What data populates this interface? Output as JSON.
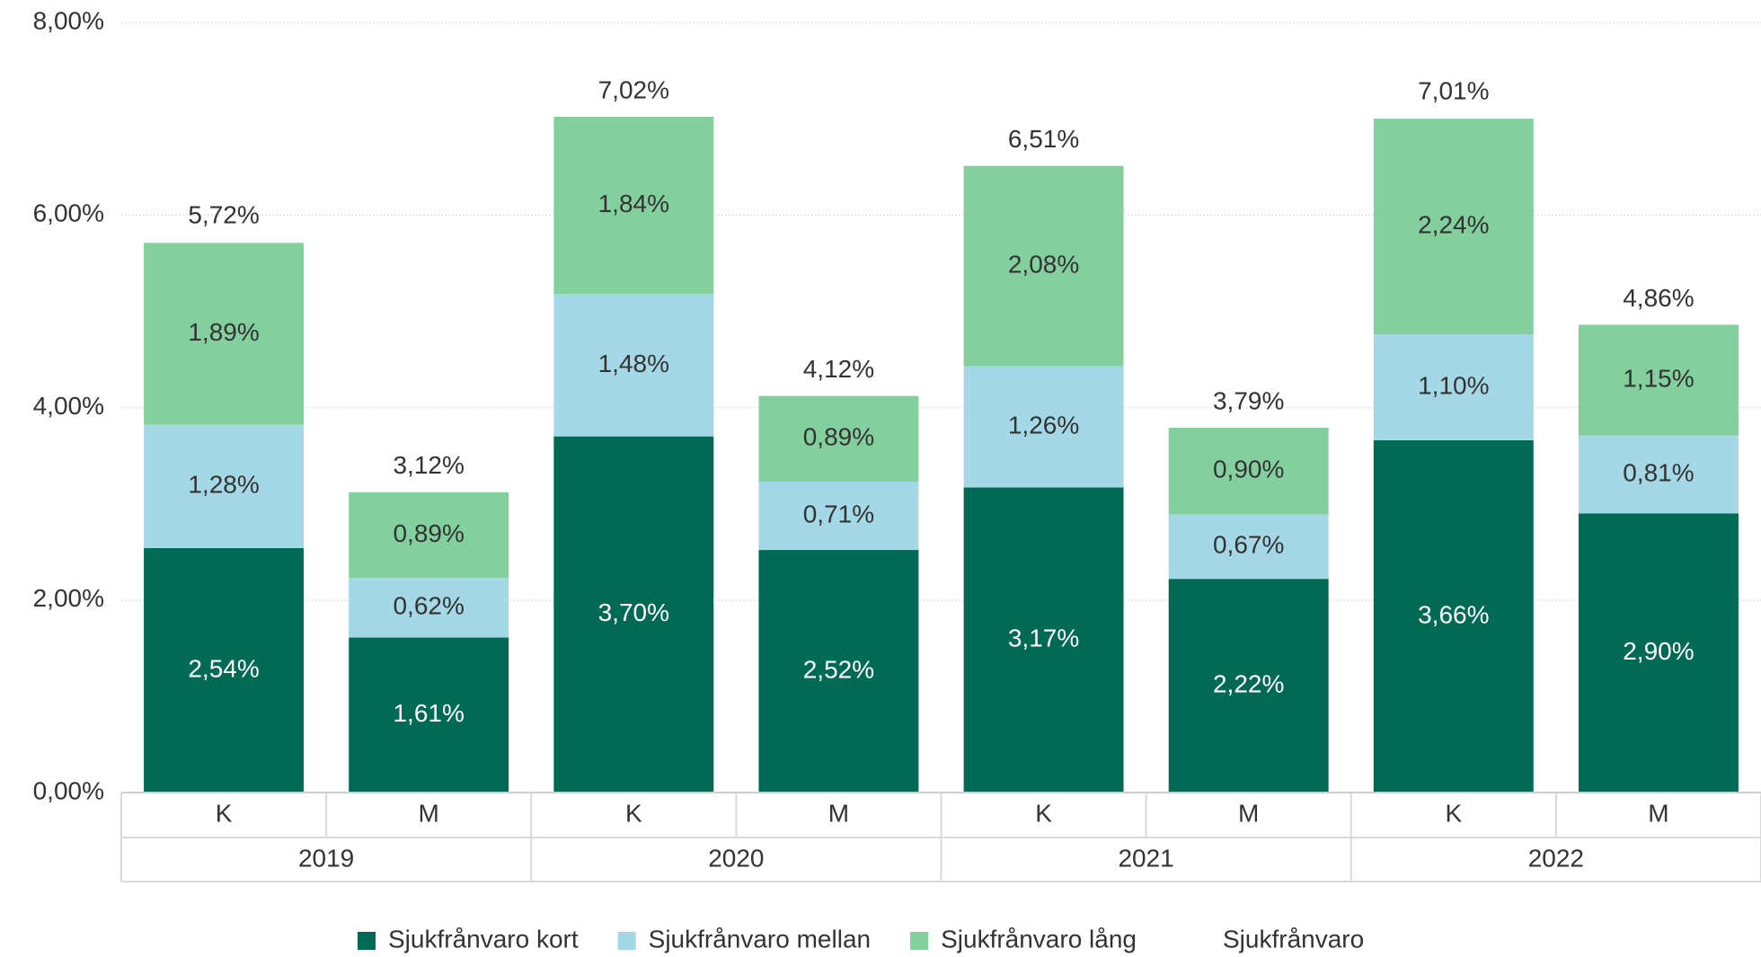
{
  "chart_data": {
    "type": "stacked-bar",
    "categories": [
      "K",
      "M",
      "K",
      "M",
      "K",
      "M",
      "K",
      "M"
    ],
    "groups": [
      "2019",
      "2020",
      "2021",
      "2022"
    ],
    "series": [
      {
        "name": "Sjukfrånvaro kort",
        "color": "#006a55",
        "label_color": "#ffffff",
        "values": [
          2.54,
          1.61,
          3.7,
          2.52,
          3.17,
          2.22,
          3.66,
          2.9
        ],
        "value_labels": [
          "2,54%",
          "1,61%",
          "3,70%",
          "2,52%",
          "3,17%",
          "2,22%",
          "3,66%",
          "2,90%"
        ]
      },
      {
        "name": "Sjukfrånvaro mellan",
        "color": "#a5d8e6",
        "label_color": "#333333",
        "values": [
          1.28,
          0.62,
          1.48,
          0.71,
          1.26,
          0.67,
          1.1,
          0.81
        ],
        "value_labels": [
          "1,28%",
          "0,62%",
          "1,48%",
          "0,71%",
          "1,26%",
          "0,67%",
          "1,10%",
          "0,81%"
        ]
      },
      {
        "name": "Sjukfrånvaro lång",
        "color": "#84cf9e",
        "label_color": "#333333",
        "values": [
          1.89,
          0.89,
          1.84,
          0.89,
          2.08,
          0.9,
          2.24,
          1.15
        ],
        "value_labels": [
          "1,89%",
          "0,89%",
          "1,84%",
          "0,89%",
          "2,08%",
          "0,90%",
          "2,24%",
          "1,15%"
        ]
      }
    ],
    "totals": {
      "name": "Sjukfrånvaro",
      "values": [
        5.72,
        3.12,
        7.02,
        4.12,
        6.51,
        3.79,
        7.01,
        4.86
      ],
      "value_labels": [
        "5,72%",
        "3,12%",
        "7,02%",
        "4,12%",
        "6,51%",
        "3,79%",
        "7,01%",
        "4,86%"
      ]
    },
    "ylim": [
      0,
      8
    ],
    "yticks": [
      {
        "value": 0,
        "label": "0,00%"
      },
      {
        "value": 2,
        "label": "2,00%"
      },
      {
        "value": 4,
        "label": "4,00%"
      },
      {
        "value": 6,
        "label": "6,00%"
      },
      {
        "value": 8,
        "label": "8,00%"
      }
    ],
    "grid": true,
    "legend": "bottom"
  }
}
